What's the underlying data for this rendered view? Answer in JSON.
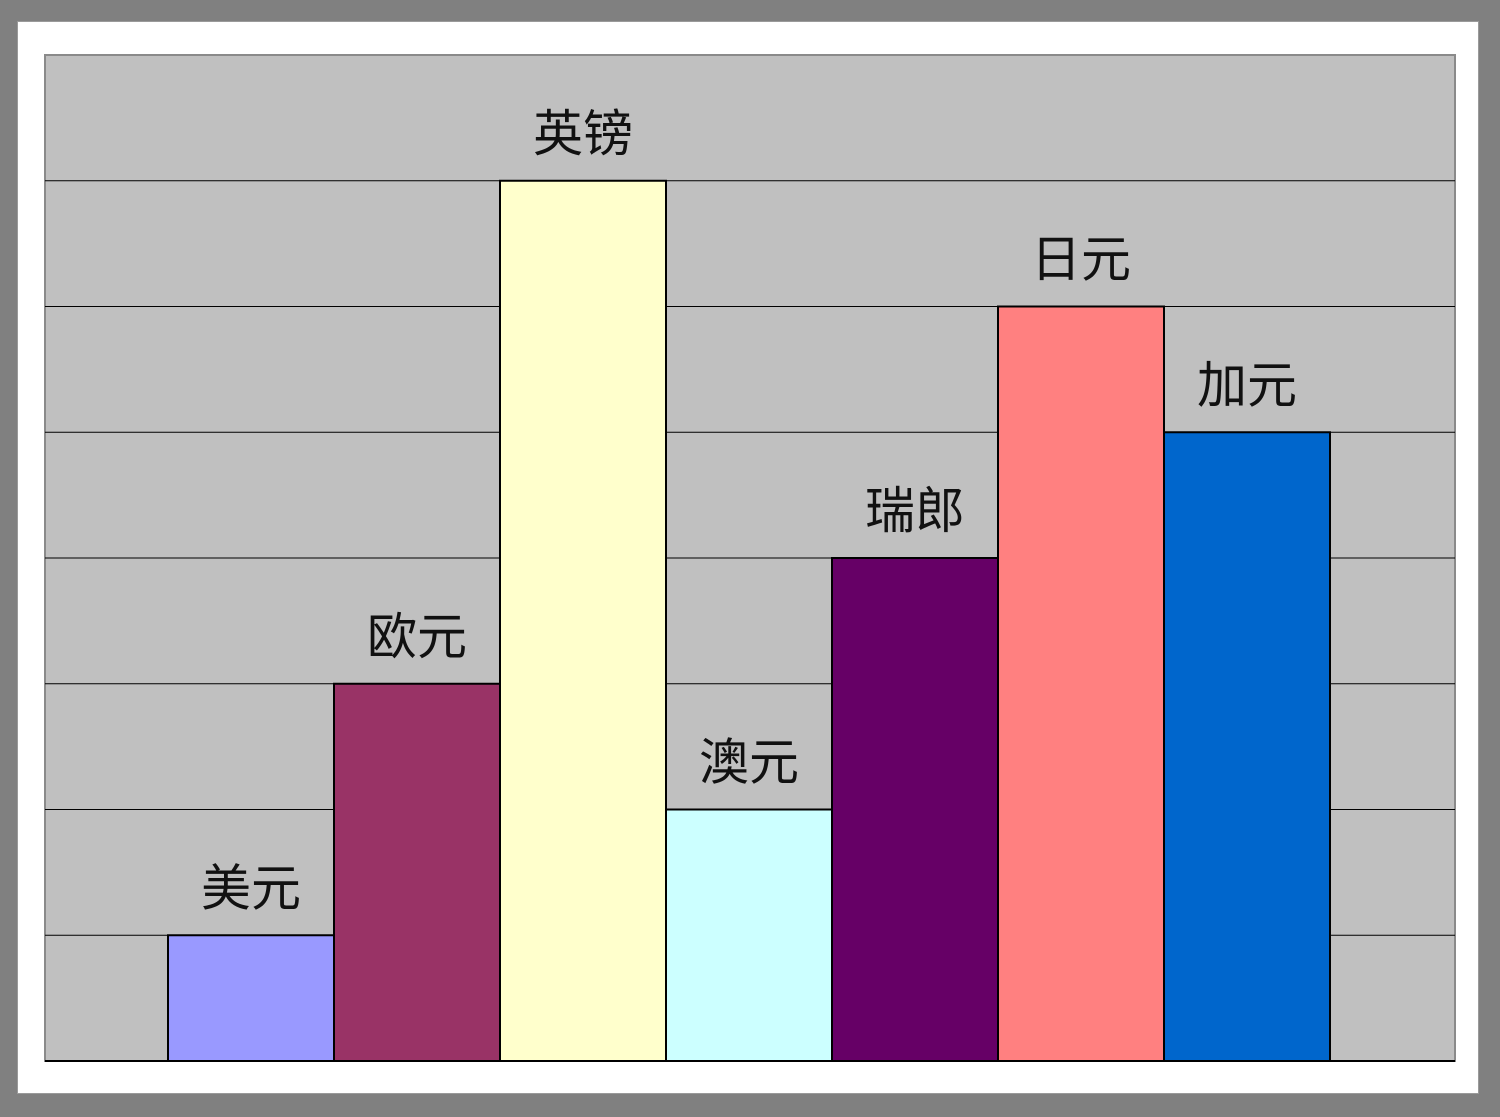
{
  "chart_data": {
    "type": "bar",
    "categories": [
      "美元",
      "欧元",
      "英镑",
      "澳元",
      "瑞郎",
      "日元",
      "加元"
    ],
    "values": [
      1,
      3,
      7,
      2,
      4,
      6,
      5
    ],
    "ylim": [
      0,
      8
    ],
    "grid": true,
    "legend": "none",
    "colors": [
      "#9999ff",
      "#993366",
      "#ffffcc",
      "#ccffff",
      "#660066",
      "#ff8080",
      "#0066cc"
    ],
    "plot_background": "#c0c0c0",
    "gridline_color": "#000000"
  }
}
